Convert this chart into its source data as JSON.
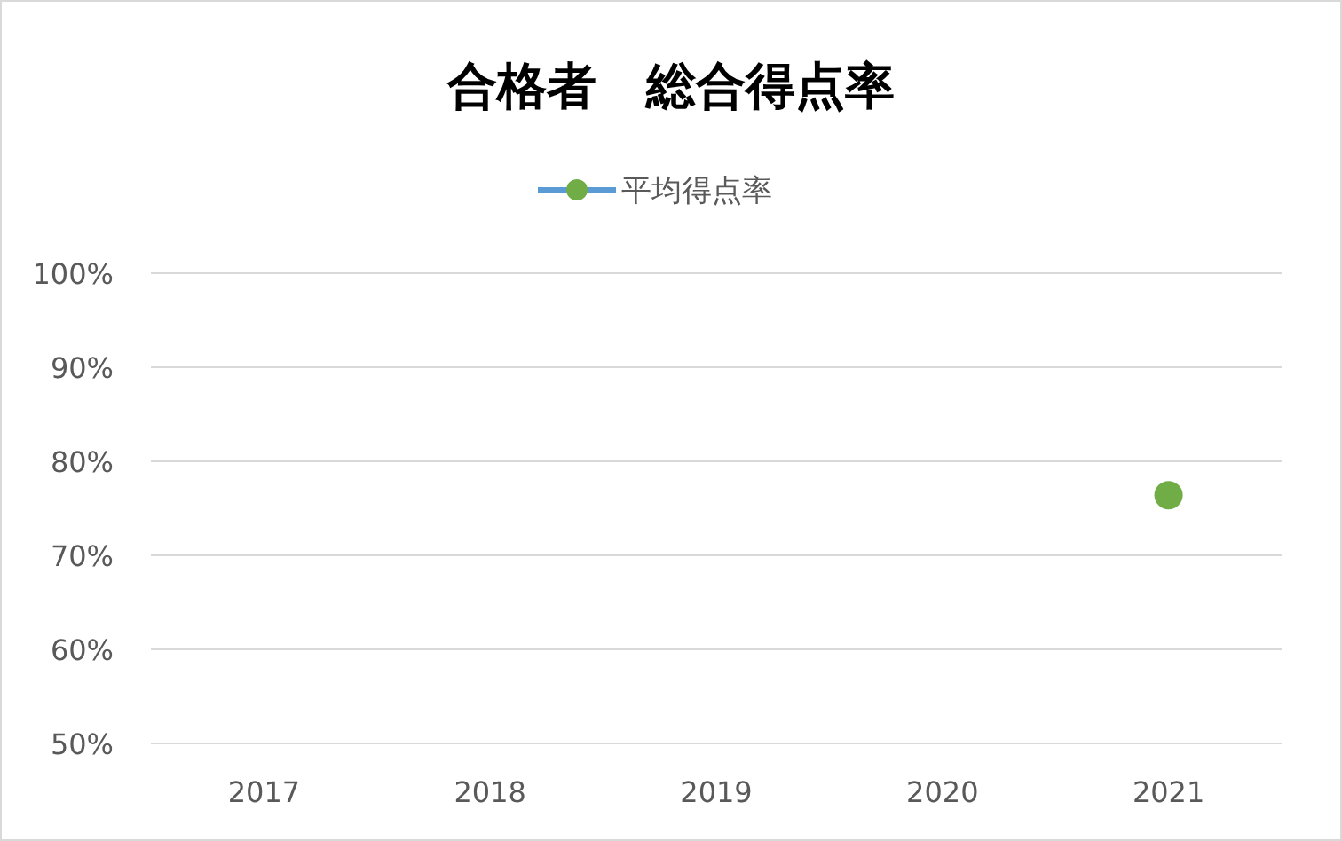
{
  "chart_data": {
    "type": "line",
    "title": "合格者　総合得点率",
    "categories": [
      "2017",
      "2018",
      "2019",
      "2020",
      "2021"
    ],
    "series": [
      {
        "name": "平均得点率",
        "color": "#5b9bd5",
        "colors": [
          null,
          null,
          null,
          null,
          "#70ad47"
        ],
        "values": [
          null,
          null,
          null,
          null,
          76.4
        ]
      }
    ],
    "ylim": [
      50,
      100
    ],
    "yticks": [
      {
        "value": 50,
        "label": "50%"
      },
      {
        "value": 60,
        "label": "60%"
      },
      {
        "value": 70,
        "label": "70%"
      },
      {
        "value": 80,
        "label": "80%"
      },
      {
        "value": 90,
        "label": "90%"
      },
      {
        "value": 100,
        "label": "100%"
      }
    ],
    "grid": "y",
    "legend": "top",
    "marker": "circle"
  }
}
